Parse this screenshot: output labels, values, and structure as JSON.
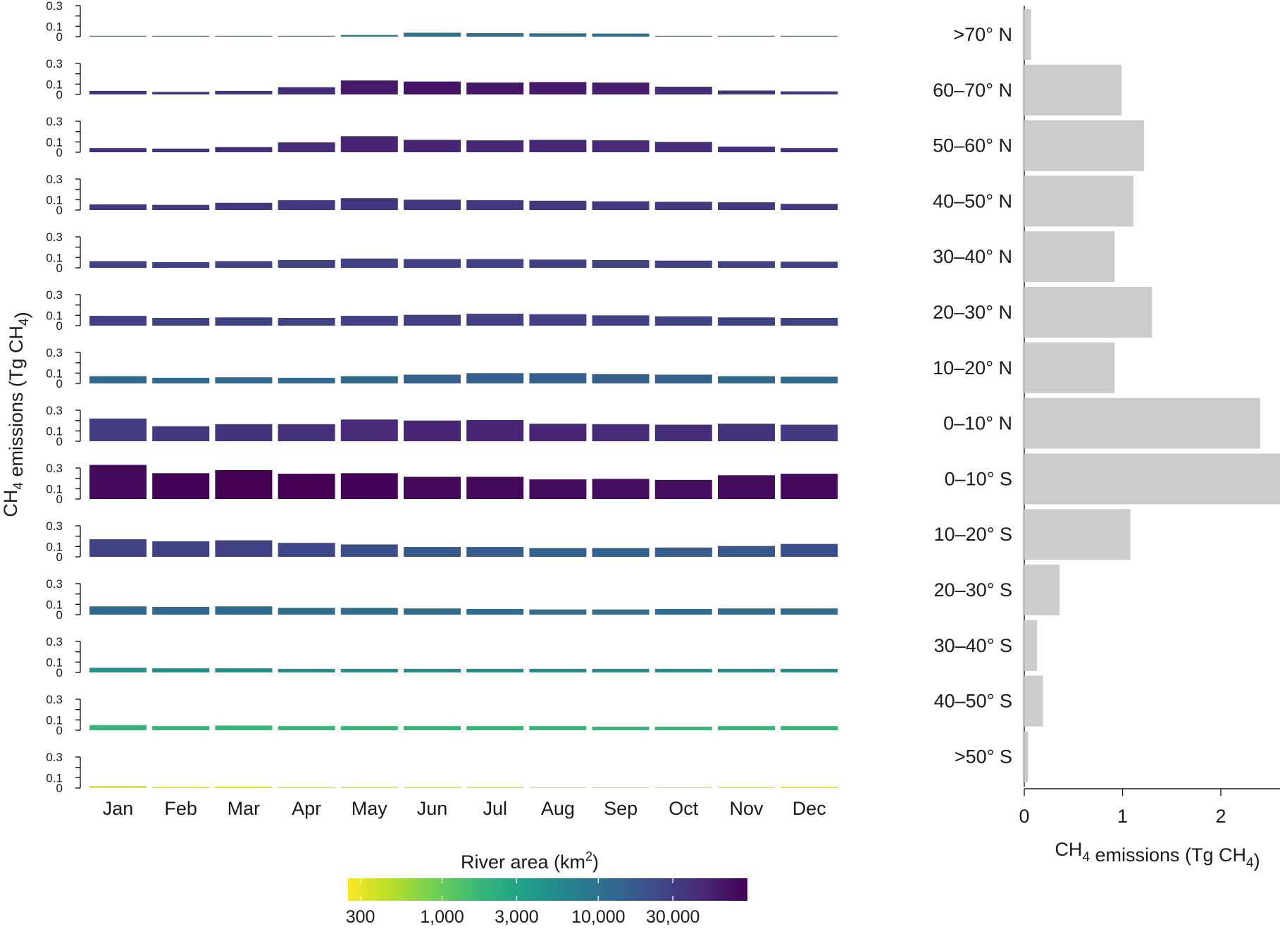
{
  "chart_data": [
    {
      "type": "bar",
      "panel": "monthly-by-latitude",
      "ylabel": "CH4 emissions (Tg CH4)",
      "ylabel_parts": {
        "pre": "CH",
        "sub": "4",
        "mid": " emissions (Tg CH",
        "sub2": "4",
        "post": ")"
      },
      "categories": [
        "Jan",
        "Feb",
        "Mar",
        "Apr",
        "May",
        "Jun",
        "Jul",
        "Aug",
        "Sep",
        "Oct",
        "Nov",
        "Dec"
      ],
      "ytick_labels": [
        "0.3",
        "0.1",
        "0"
      ],
      "yticks": [
        0,
        0.1,
        0.2,
        0.3
      ],
      "ytick_labeled": [
        0,
        0.1,
        0.3
      ],
      "ylim": [
        0,
        0.3
      ],
      "series": [
        {
          "band": ">70° N",
          "values": [
            0.002,
            0.001,
            0.002,
            0.003,
            0.016,
            0.038,
            0.034,
            0.032,
            0.03,
            0.005,
            0.002,
            0.001
          ],
          "river_area_km2": [
            8000,
            8000,
            8000,
            8000,
            9000,
            9500,
            9500,
            9500,
            9500,
            8000,
            8000,
            8000
          ]
        },
        {
          "band": "60–70° N",
          "values": [
            0.035,
            0.025,
            0.035,
            0.07,
            0.135,
            0.125,
            0.115,
            0.12,
            0.115,
            0.075,
            0.038,
            0.03
          ],
          "river_area_km2": [
            35000,
            35000,
            38000,
            45000,
            60000,
            65000,
            62000,
            58000,
            55000,
            45000,
            38000,
            35000
          ]
        },
        {
          "band": "50–60° N",
          "values": [
            0.04,
            0.035,
            0.05,
            0.095,
            0.155,
            0.12,
            0.115,
            0.12,
            0.115,
            0.1,
            0.055,
            0.04
          ],
          "river_area_km2": [
            40000,
            40000,
            42000,
            45000,
            50000,
            48000,
            46000,
            46000,
            45000,
            43000,
            40000,
            40000
          ]
        },
        {
          "band": "40–50° N",
          "values": [
            0.055,
            0.05,
            0.07,
            0.095,
            0.115,
            0.1,
            0.095,
            0.09,
            0.085,
            0.08,
            0.075,
            0.06
          ],
          "river_area_km2": [
            35000,
            35000,
            35000,
            35000,
            36000,
            35000,
            34000,
            33000,
            33000,
            33000,
            33000,
            34000
          ]
        },
        {
          "band": "30–40° N",
          "values": [
            0.065,
            0.055,
            0.065,
            0.075,
            0.09,
            0.085,
            0.085,
            0.08,
            0.075,
            0.07,
            0.065,
            0.06
          ],
          "river_area_km2": [
            28000,
            28000,
            28000,
            28000,
            28000,
            28000,
            28000,
            28000,
            28000,
            28000,
            28000,
            28000
          ]
        },
        {
          "band": "20–30° N",
          "values": [
            0.095,
            0.075,
            0.08,
            0.075,
            0.095,
            0.105,
            0.115,
            0.11,
            0.1,
            0.09,
            0.08,
            0.075
          ],
          "river_area_km2": [
            28000,
            28000,
            28000,
            28000,
            28000,
            28000,
            28000,
            28000,
            28000,
            28000,
            28000,
            28000
          ]
        },
        {
          "band": "10–20° N",
          "values": [
            0.07,
            0.055,
            0.06,
            0.055,
            0.07,
            0.085,
            0.1,
            0.1,
            0.09,
            0.085,
            0.07,
            0.065
          ],
          "river_area_km2": [
            12000,
            12000,
            12000,
            12000,
            13000,
            14000,
            15000,
            15000,
            15000,
            14000,
            13000,
            12000
          ]
        },
        {
          "band": "0–10° N",
          "values": [
            0.22,
            0.145,
            0.165,
            0.165,
            0.21,
            0.2,
            0.205,
            0.17,
            0.165,
            0.16,
            0.17,
            0.16
          ],
          "river_area_km2": [
            30000,
            35000,
            38000,
            40000,
            45000,
            48000,
            48000,
            48000,
            45000,
            42000,
            38000,
            32000
          ]
        },
        {
          "band": "0–10° S",
          "values": [
            0.33,
            0.25,
            0.28,
            0.245,
            0.25,
            0.215,
            0.215,
            0.19,
            0.195,
            0.185,
            0.23,
            0.245
          ],
          "river_area_km2": [
            80000,
            85000,
            90000,
            90000,
            85000,
            80000,
            78000,
            75000,
            72000,
            72000,
            75000,
            78000
          ]
        },
        {
          "band": "10–20° S",
          "values": [
            0.17,
            0.15,
            0.16,
            0.135,
            0.12,
            0.095,
            0.095,
            0.085,
            0.085,
            0.09,
            0.105,
            0.125
          ],
          "river_area_km2": [
            28000,
            28000,
            28000,
            25000,
            22000,
            18000,
            16000,
            15000,
            15000,
            16000,
            18000,
            22000
          ]
        },
        {
          "band": "20–30° S",
          "values": [
            0.08,
            0.075,
            0.08,
            0.065,
            0.065,
            0.06,
            0.055,
            0.05,
            0.05,
            0.055,
            0.06,
            0.06
          ],
          "river_area_km2": [
            12000,
            12000,
            12000,
            11000,
            11000,
            11000,
            11000,
            11000,
            11000,
            11000,
            11000,
            11000
          ]
        },
        {
          "band": "30–40° S",
          "values": [
            0.045,
            0.04,
            0.04,
            0.035,
            0.035,
            0.035,
            0.035,
            0.035,
            0.035,
            0.035,
            0.035,
            0.035
          ],
          "river_area_km2": [
            5000,
            5000,
            5000,
            5000,
            5000,
            5000,
            5000,
            5000,
            5000,
            5000,
            5000,
            5000
          ]
        },
        {
          "band": "40–50° S",
          "values": [
            0.05,
            0.04,
            0.045,
            0.04,
            0.04,
            0.04,
            0.04,
            0.04,
            0.035,
            0.035,
            0.04,
            0.04
          ],
          "river_area_km2": [
            1800,
            1800,
            1800,
            1800,
            1800,
            1800,
            1800,
            1800,
            1800,
            1800,
            1800,
            1800
          ]
        },
        {
          "band": ">50° S",
          "values": [
            0.02,
            0.012,
            0.015,
            0.01,
            0.01,
            0.01,
            0.01,
            0.008,
            0.008,
            0.008,
            0.01,
            0.012
          ],
          "river_area_km2": [
            320,
            320,
            320,
            320,
            320,
            320,
            320,
            320,
            320,
            320,
            320,
            320
          ]
        }
      ]
    },
    {
      "type": "bar",
      "orientation": "horizontal",
      "panel": "annual-by-latitude",
      "xlabel": "CH4 emissions (Tg CH4)",
      "xlabel_parts": {
        "pre": "CH",
        "sub": "4",
        "mid": " emissions (Tg CH",
        "sub2": "4",
        "post": ")"
      },
      "xticks": [
        0,
        1,
        2
      ],
      "xtick_labels": [
        "0",
        "1",
        "2"
      ],
      "xlim": [
        0,
        2.6
      ],
      "color": "#cccccc",
      "categories": [
        ">70° N",
        "60–70° N",
        "50–60° N",
        "40–50° N",
        "30–40° N",
        "20–30° N",
        "10–20° N",
        "0–10° N",
        "0–10° S",
        "10–20° S",
        "20–30° S",
        "30–40° S",
        "40–50° S",
        ">50° S"
      ],
      "values": [
        0.07,
        0.99,
        1.22,
        1.11,
        0.92,
        1.3,
        0.92,
        2.4,
        2.65,
        1.08,
        0.36,
        0.13,
        0.19,
        0.04
      ]
    }
  ],
  "colorbar": {
    "title_pre": "River area (km",
    "title_sup": "2",
    "title_post": ")",
    "scale": "log",
    "range_km2": [
      250,
      90000
    ],
    "ticks": [
      300,
      1000,
      3000,
      10000,
      30000
    ],
    "tick_labels": [
      "300",
      "1,000",
      "3,000",
      "10,000",
      "30,000"
    ],
    "palette": [
      "#fde725",
      "#b5de2b",
      "#6ece58",
      "#35b779",
      "#1f9e89",
      "#26828e",
      "#31688e",
      "#3e4989",
      "#482878",
      "#440154"
    ]
  }
}
